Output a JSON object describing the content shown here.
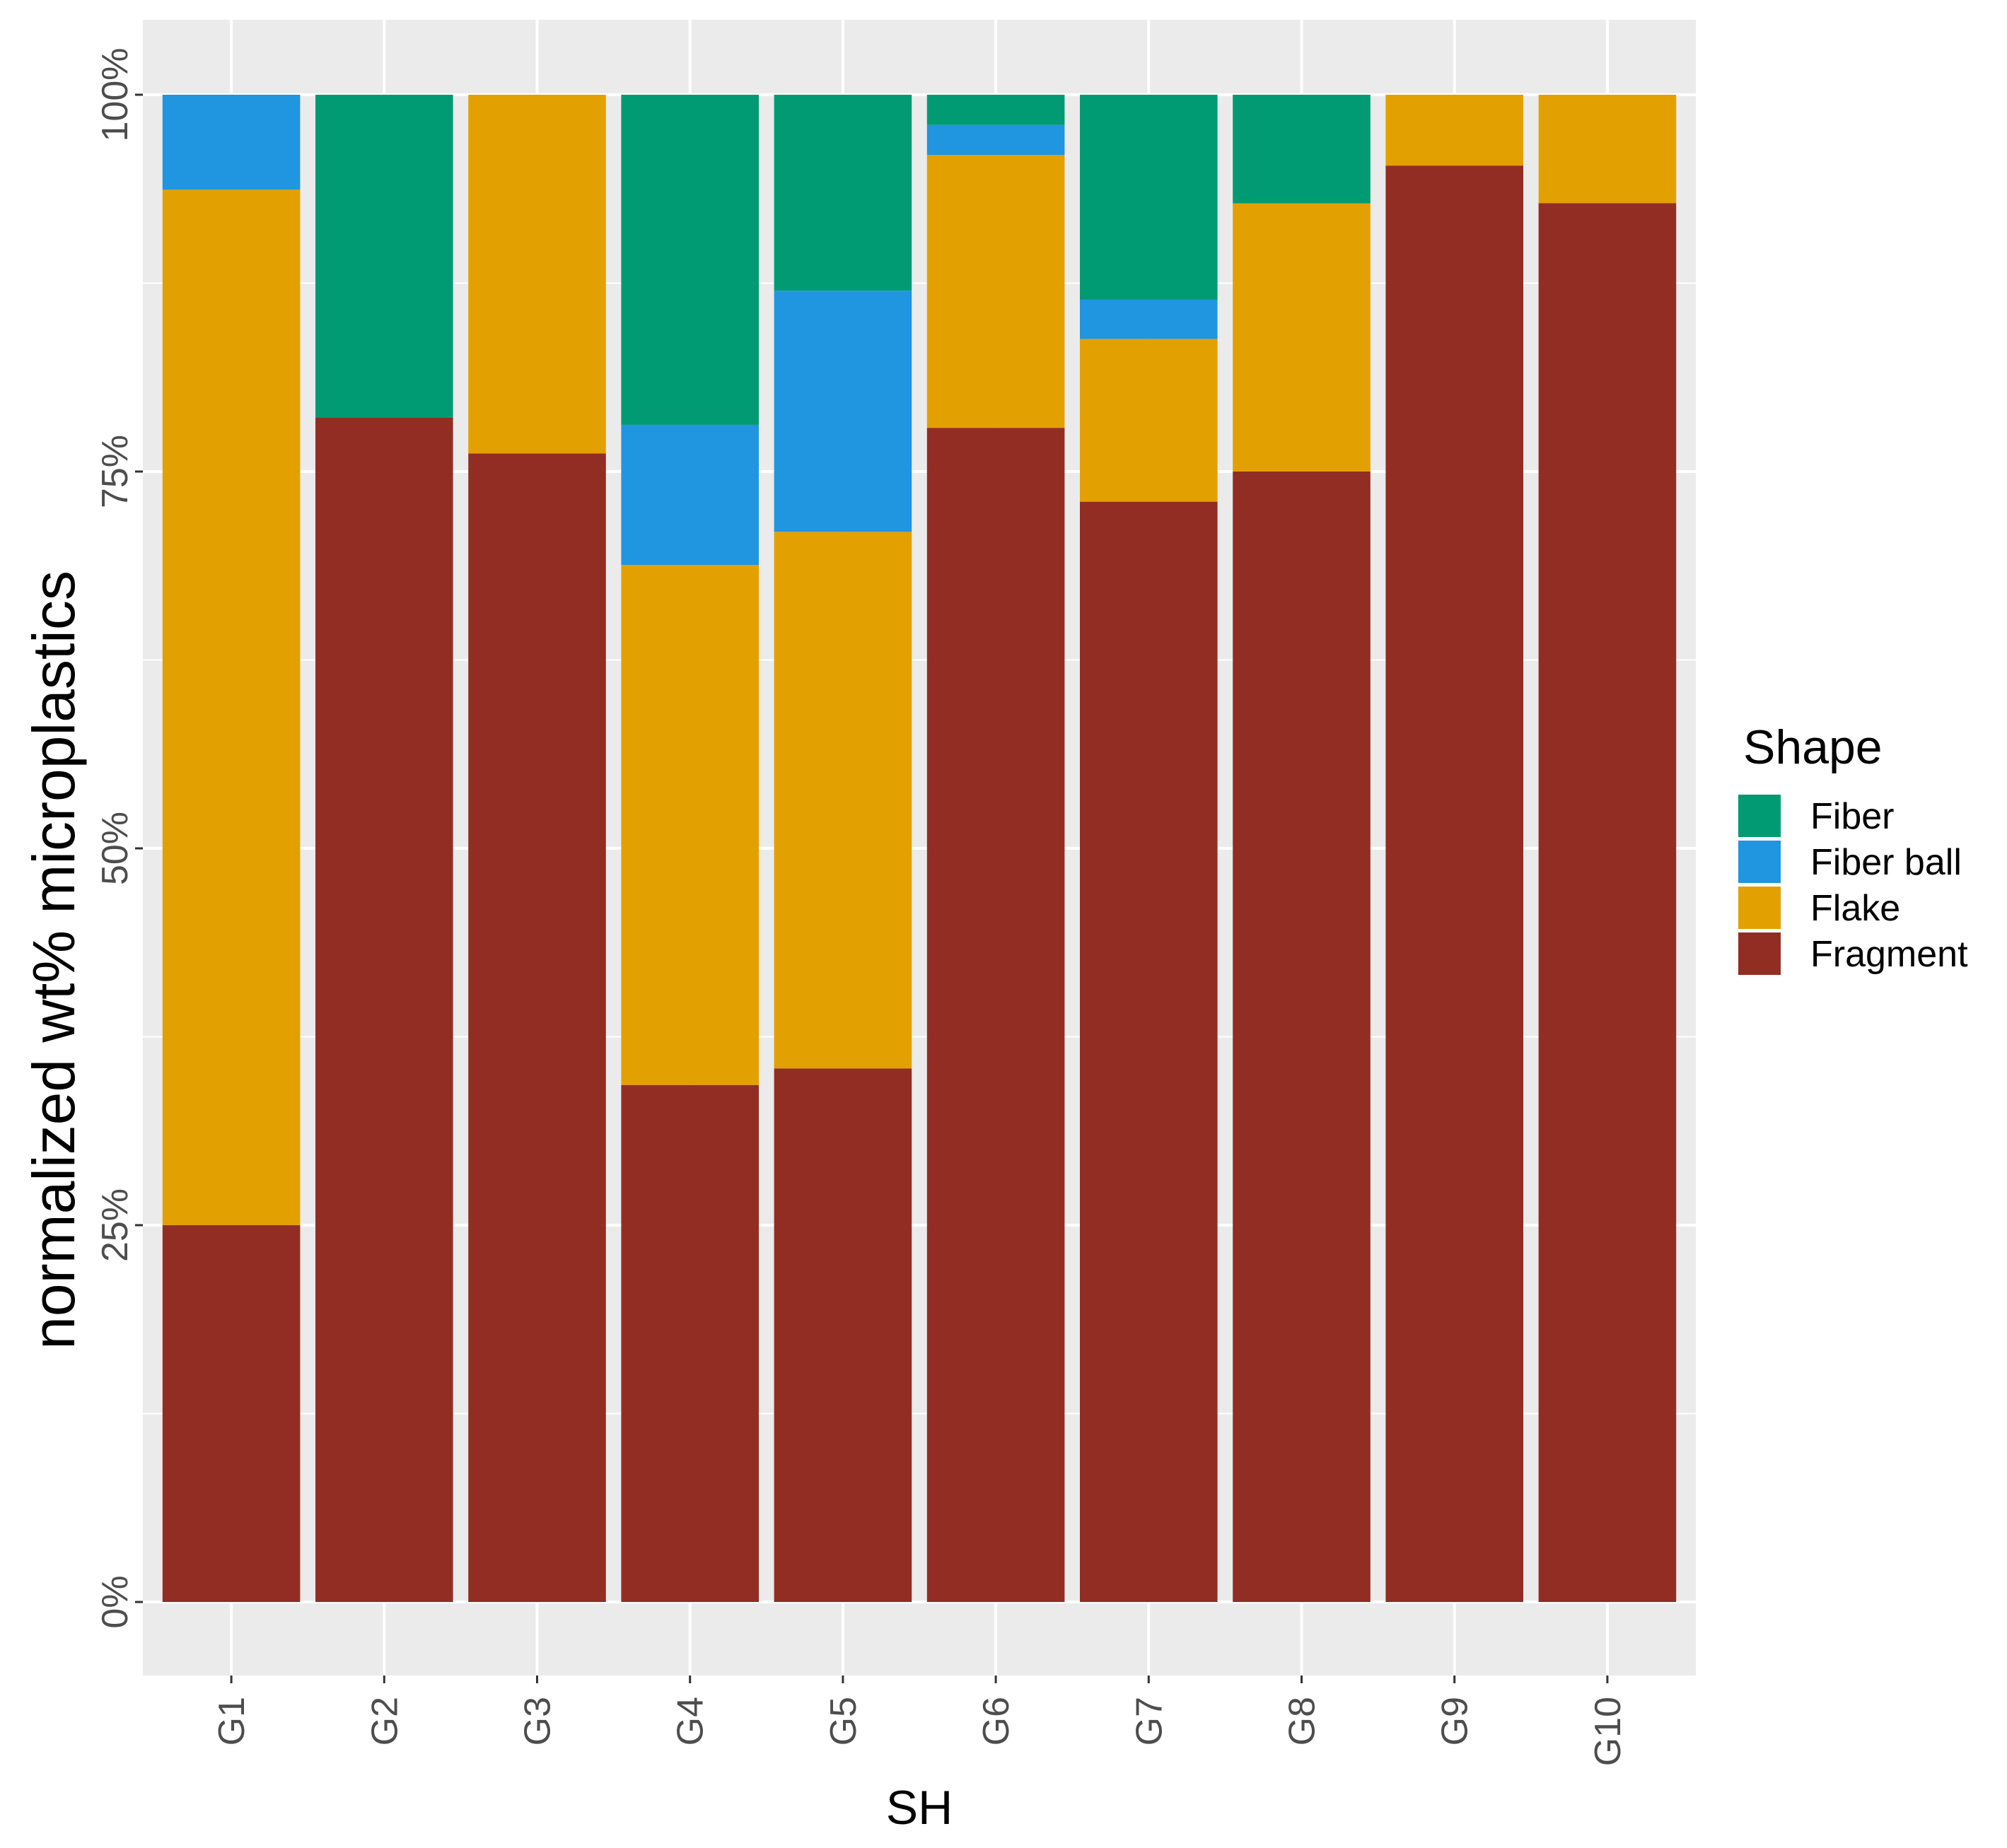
{
  "chart_data": {
    "type": "bar",
    "stacked": true,
    "normalized": true,
    "xlabel": "SH",
    "ylabel": "normalized wt% microplastics",
    "ylim": [
      0,
      1
    ],
    "yticks": [
      "0%",
      "25%",
      "50%",
      "75%",
      "100%"
    ],
    "categories": [
      "G1",
      "G2",
      "G3",
      "G4",
      "G5",
      "G6",
      "G7",
      "G8",
      "G9",
      "G10"
    ],
    "series": [
      {
        "name": "Fragment",
        "color": "#922d24",
        "values": [
          0.25,
          0.786,
          0.762,
          0.343,
          0.354,
          0.779,
          0.73,
          0.75,
          0.953,
          0.928
        ]
      },
      {
        "name": "Flake",
        "color": "#e3a001",
        "values": [
          0.687,
          0.0,
          0.238,
          0.345,
          0.356,
          0.181,
          0.108,
          0.178,
          0.047,
          0.072
        ]
      },
      {
        "name": "Fiber ball",
        "color": "#2095e0",
        "values": [
          0.063,
          0.0,
          0.0,
          0.093,
          0.16,
          0.02,
          0.026,
          0.0,
          0.0,
          0.0
        ]
      },
      {
        "name": "Fiber",
        "color": "#009b73",
        "values": [
          0.0,
          0.214,
          0.0,
          0.219,
          0.13,
          0.02,
          0.136,
          0.072,
          0.0,
          0.0
        ]
      }
    ],
    "legend": {
      "title": "Shape",
      "items": [
        "Fiber",
        "Fiber ball",
        "Flake",
        "Fragment"
      ],
      "position": "right"
    }
  }
}
